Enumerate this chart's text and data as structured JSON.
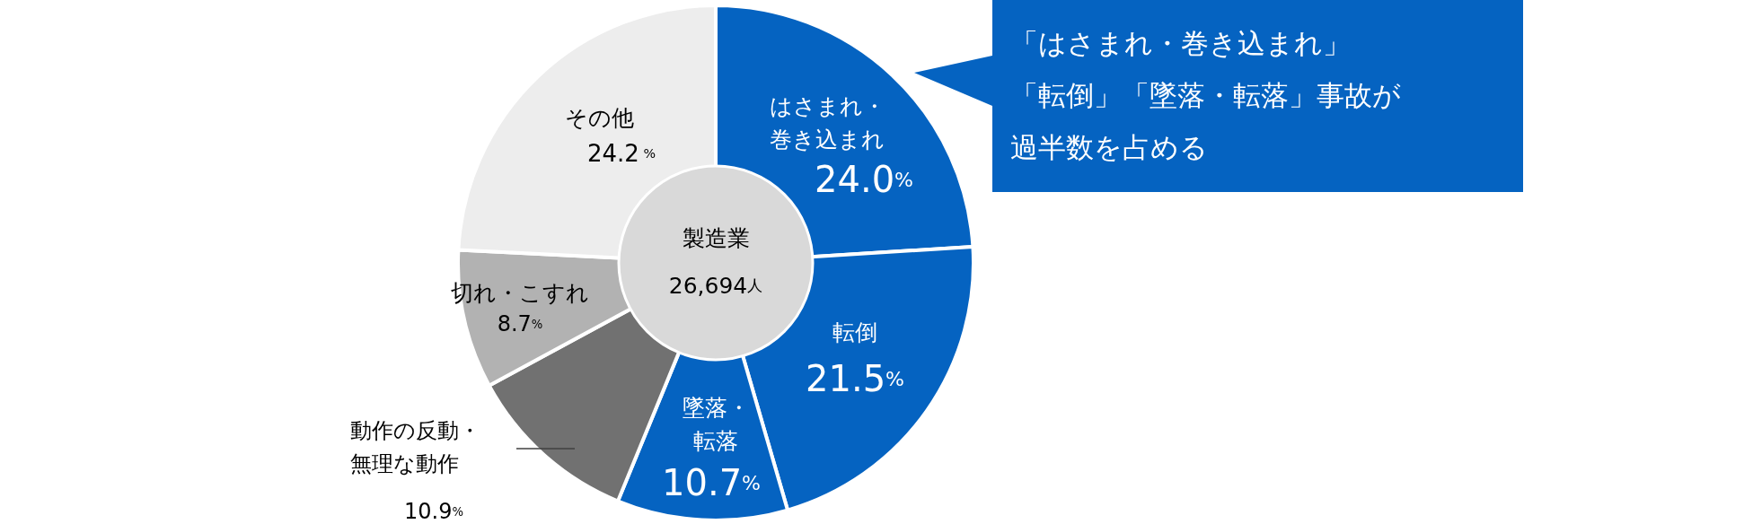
{
  "chart_data": {
    "type": "donut",
    "title": "製造業",
    "subtitle": "26,694人",
    "categories": [
      "はさまれ・巻き込まれ",
      "転倒",
      "墜落・転落",
      "動作の反動・無理な動作",
      "切れ・こすれ",
      "その他"
    ],
    "values": [
      24.0,
      21.5,
      10.7,
      10.9,
      8.7,
      24.2
    ],
    "value_labels": [
      "24.0%",
      "21.5%",
      "10.7%",
      "10.9%",
      "8.7%",
      "24.2 %"
    ],
    "colors": [
      "#0563c1",
      "#0563c1",
      "#0563c1",
      "#717171",
      "#b2b2b2",
      "#ededed"
    ],
    "annotations": [
      "「はさまれ・巻き込まれ」「転倒」「墜落・転落」事故が過半数を占める"
    ]
  }
}
